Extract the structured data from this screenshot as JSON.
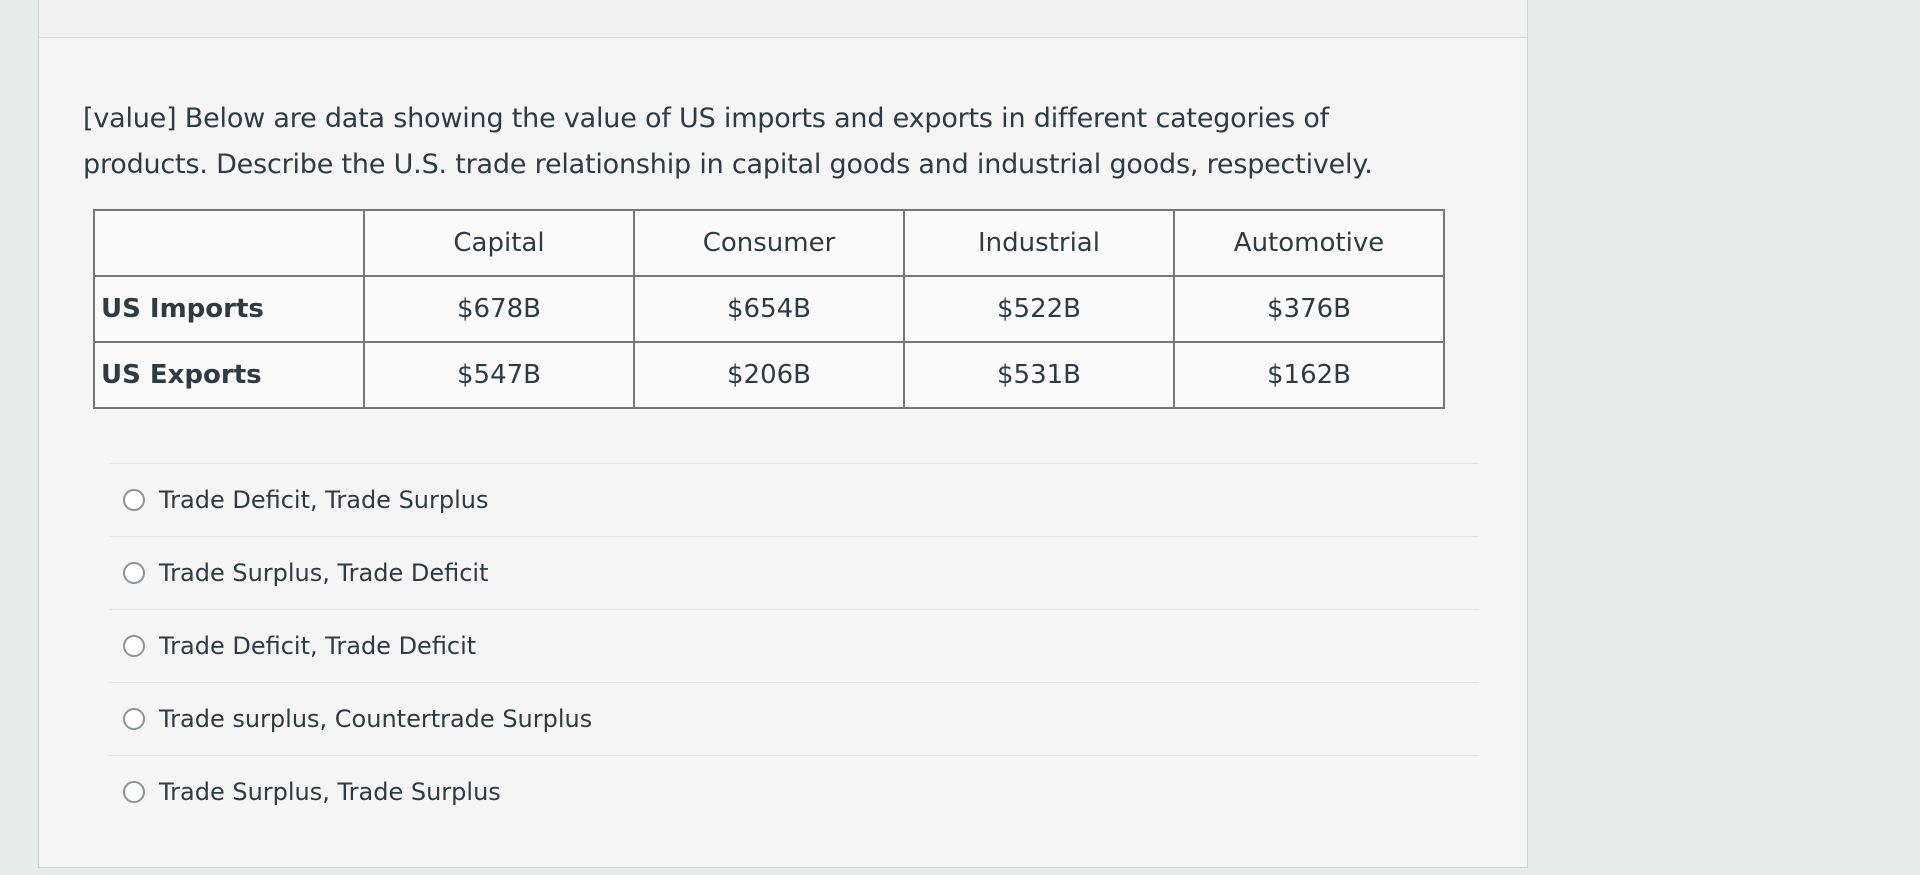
{
  "question": {
    "text_line1": "[value] Below are data showing the value of US imports and exports in different categories of",
    "text_line2": "products. Describe the U.S. trade relationship in capital goods and industrial goods, respectively."
  },
  "table": {
    "header": [
      "",
      "Capital",
      "Consumer",
      "Industrial",
      "Automotive"
    ],
    "rows": [
      [
        "US Imports",
        "$678B",
        "$654B",
        "$522B",
        "$376B"
      ],
      [
        "US Exports",
        "$547B",
        "$206B",
        "$531B",
        "$162B"
      ]
    ]
  },
  "options": [
    "Trade Deficit, Trade Surplus",
    "Trade Surplus, Trade Deficit",
    "Trade Deficit, Trade Deficit",
    "Trade surplus, Countertrade Surplus",
    "Trade Surplus, Trade Surplus"
  ]
}
